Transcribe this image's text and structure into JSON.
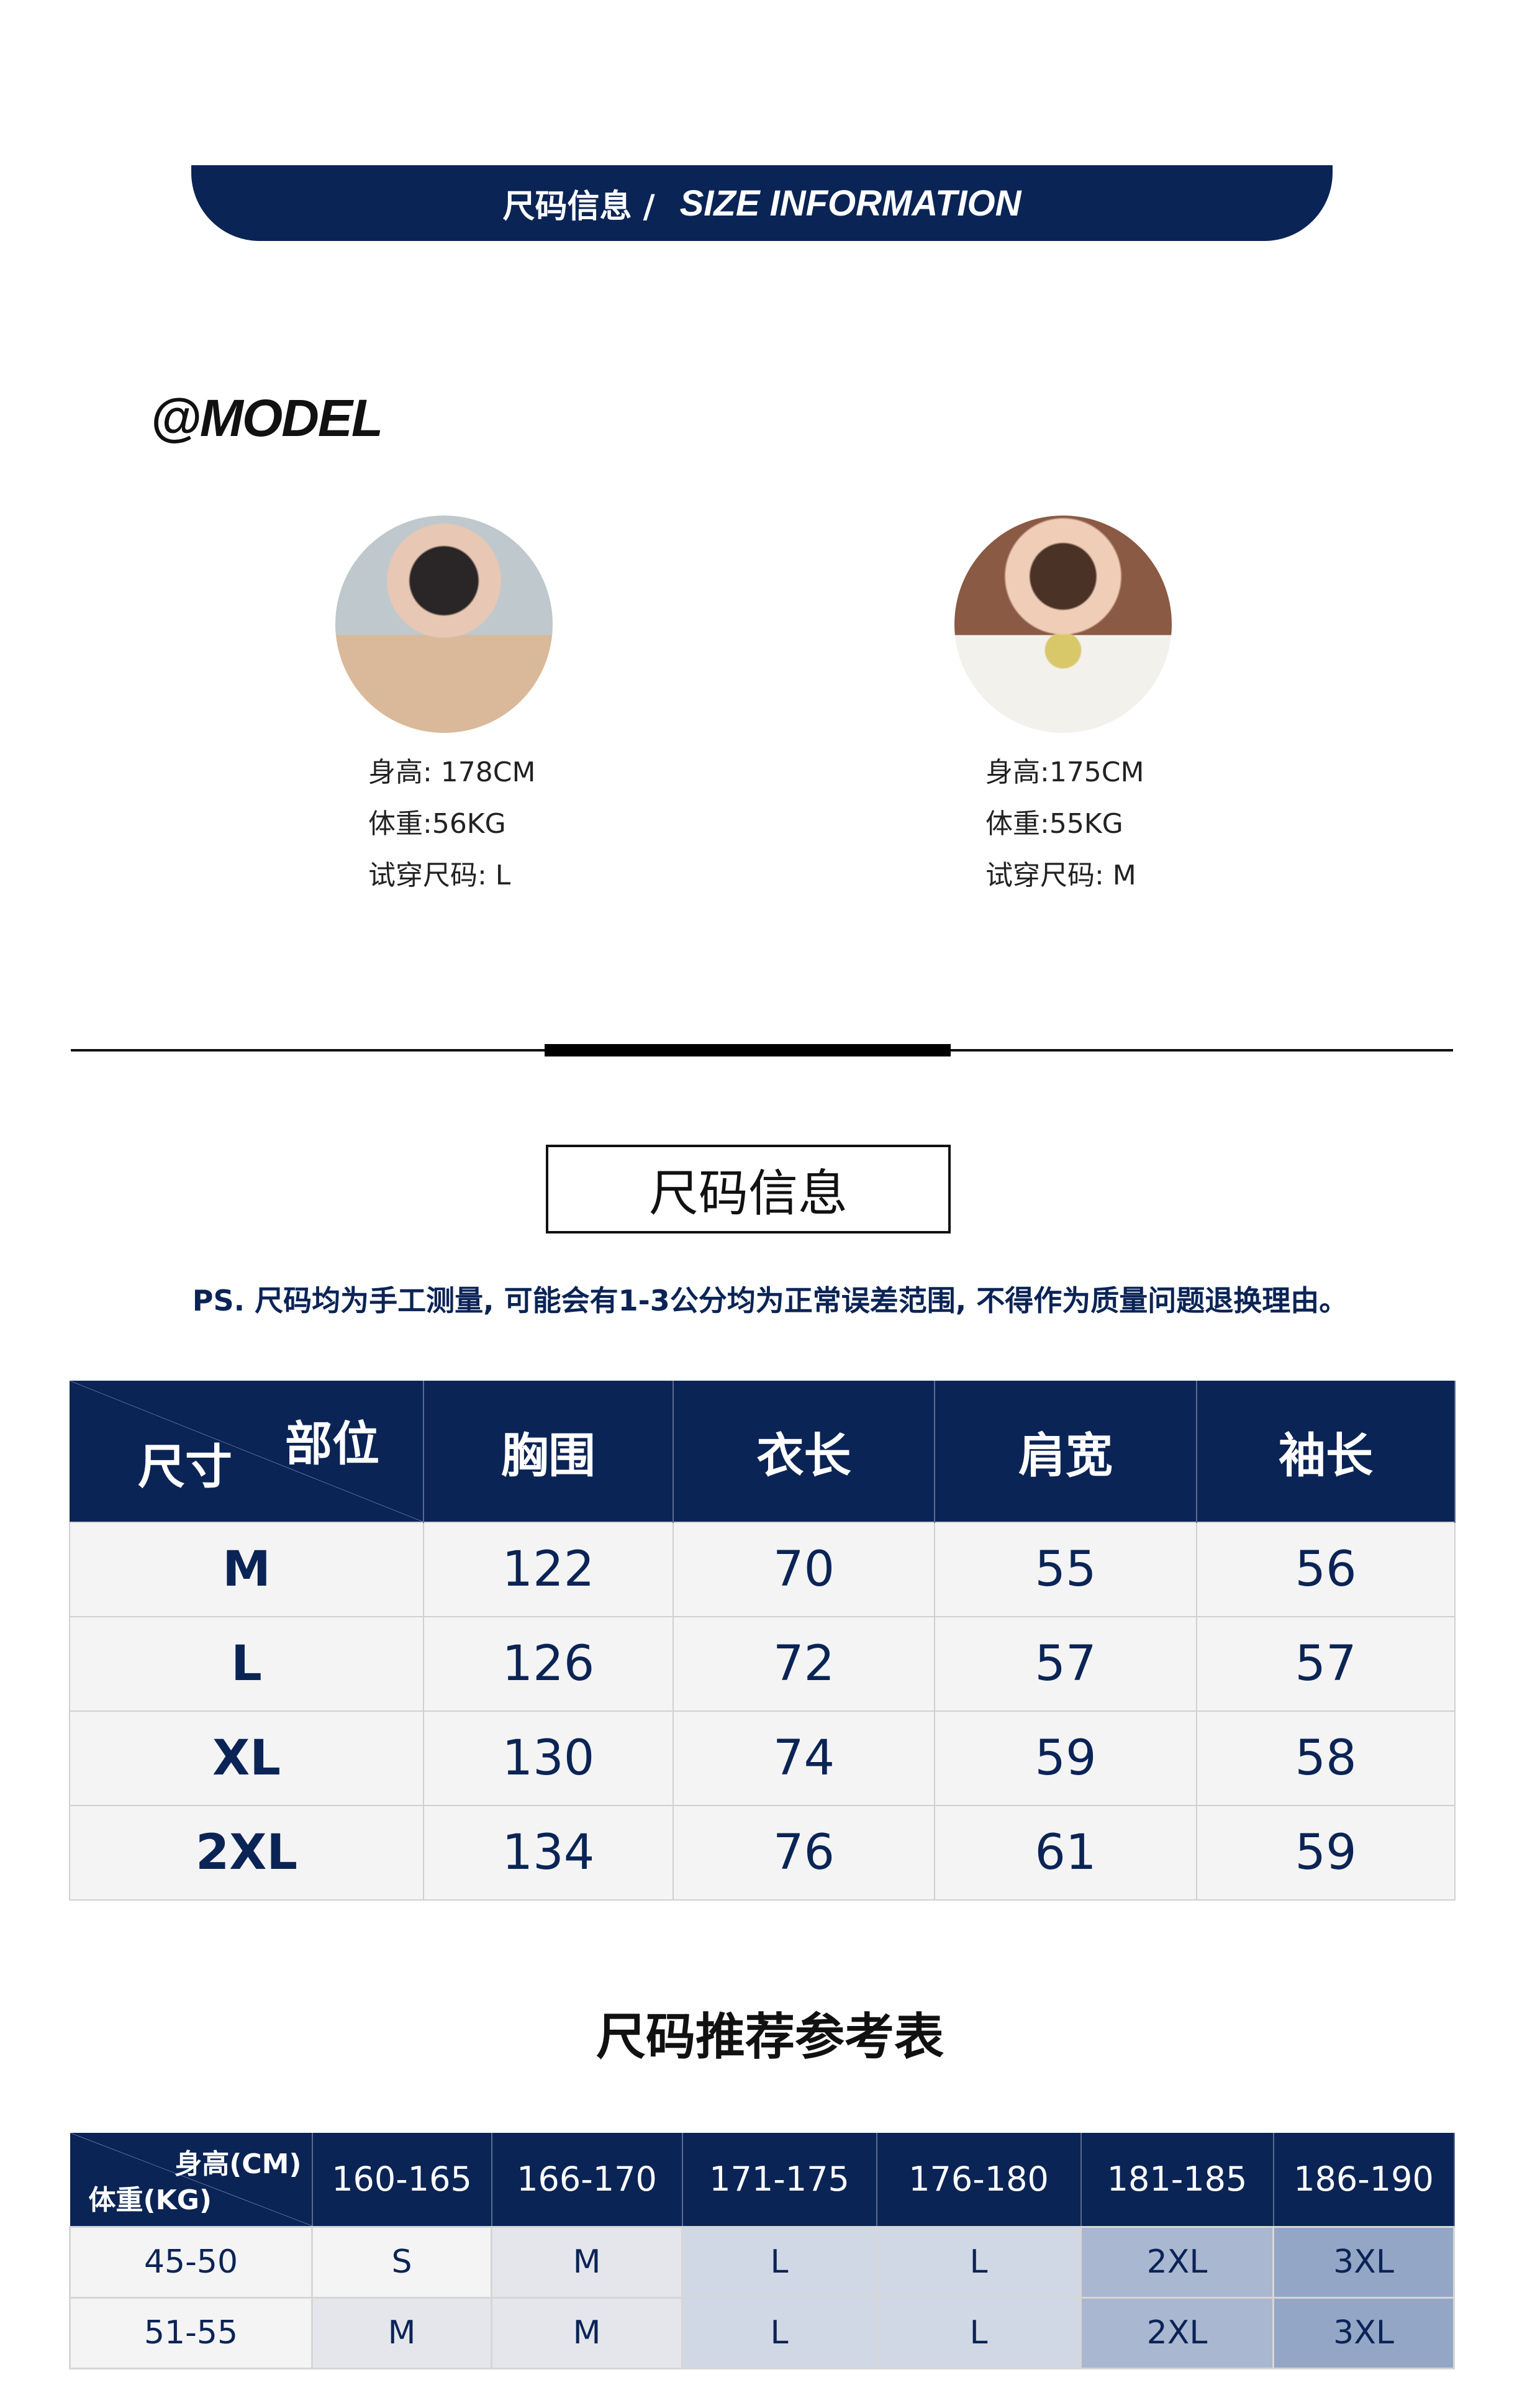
{
  "banner": {
    "cn": "尺码信息 /",
    "en": "SIZE INFORMATION"
  },
  "model_title": "@MODEL",
  "models": [
    {
      "height": "身高: 178CM",
      "weight": "体重:56KG",
      "size": "试穿尺码: L"
    },
    {
      "height": "身高:175CM",
      "weight": "体重:55KG",
      "size": "试穿尺码: M"
    }
  ],
  "size_box_title": "尺码信息",
  "note": "PS. 尺码均为手工测量, 可能会有1-3公分均为正常误差范围, 不得作为质量问题退换理由。",
  "size_table": {
    "corner_top": "部位",
    "corner_bottom": "尺寸",
    "headers": [
      "胸围",
      "衣长",
      "肩宽",
      "袖长"
    ],
    "rows": [
      [
        "M",
        "122",
        "70",
        "55",
        "56"
      ],
      [
        "L",
        "126",
        "72",
        "57",
        "57"
      ],
      [
        "XL",
        "130",
        "74",
        "59",
        "58"
      ],
      [
        "2XL",
        "134",
        "76",
        "61",
        "59"
      ]
    ]
  },
  "rec_title": "尺码推荐参考表",
  "rec_table": {
    "corner_top": "身高(CM)",
    "corner_bottom": "体重(KG)",
    "headers": [
      "160-165",
      "166-170",
      "171-175",
      "176-180",
      "181-185",
      "186-190"
    ],
    "rows": [
      [
        "45-50",
        "S",
        "M",
        "L",
        "L",
        "2XL",
        "3XL"
      ],
      [
        "51-55",
        "M",
        "M",
        "L",
        "L",
        "2XL",
        "3XL"
      ]
    ]
  },
  "colors": {
    "navy": "#0b2456",
    "S": "#f4f4f4",
    "M": "#e4e6ec",
    "L": "#d0d8e6",
    "2XL": "#a9b7d0",
    "3XL": "#93a6c6"
  }
}
